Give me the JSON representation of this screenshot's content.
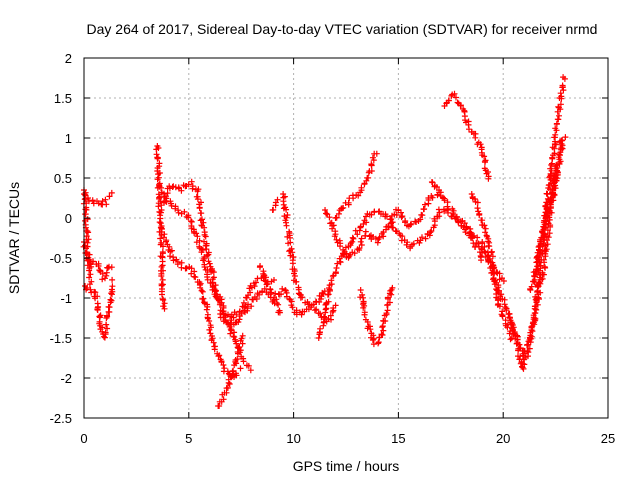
{
  "chart_data": {
    "type": "scatter",
    "title": "Day 264 of 2017, Sidereal Day-to-day VTEC variation (SDTVAR) for receiver nrmd",
    "xlabel": "GPS time / hours",
    "ylabel": "SDTVAR / TECUs",
    "xlim": [
      0,
      25
    ],
    "ylim": [
      -2.5,
      2
    ],
    "xticks": [
      "0",
      "5",
      "10",
      "15",
      "20",
      "25"
    ],
    "yticks": [
      "2",
      "1.5",
      "1",
      "0.5",
      "0",
      "-0.5",
      "-1",
      "-1.5",
      "-2",
      "-2.5"
    ],
    "grid": true,
    "marker": "+",
    "color": "#ff0000",
    "tracks": [
      {
        "x": [
          0.0,
          0.2,
          0.5,
          0.8,
          1.0,
          1.3
        ],
        "y": [
          0.3,
          0.25,
          0.2,
          0.15,
          0.2,
          0.3
        ]
      },
      {
        "x": [
          0.0,
          0.15,
          0.3,
          0.5,
          0.7,
          0.9,
          1.1,
          1.3
        ],
        "y": [
          -0.3,
          -0.45,
          -0.6,
          -0.55,
          -0.6,
          -0.75,
          -0.65,
          -0.6
        ]
      },
      {
        "x": [
          0.05,
          0.3,
          0.5,
          0.7,
          0.85,
          1.0,
          1.2,
          1.35
        ],
        "y": [
          -0.85,
          -0.9,
          -0.9,
          -1.15,
          -1.45,
          -1.5,
          -1.15,
          -0.8
        ]
      },
      {
        "x": [
          0.0,
          0.1,
          0.2,
          0.3
        ],
        "y": [
          0.35,
          0.05,
          -0.45,
          -0.8
        ]
      },
      {
        "x": [
          3.5,
          3.55,
          3.6,
          3.7,
          3.8
        ],
        "y": [
          0.9,
          0.6,
          0.2,
          -0.3,
          -1.15
        ]
      },
      {
        "x": [
          3.6,
          4.0,
          4.5,
          5.0,
          5.5,
          6.0,
          6.5,
          7.0,
          7.5,
          7.9
        ],
        "y": [
          0.4,
          0.2,
          0.1,
          0.0,
          -0.3,
          -0.8,
          -1.1,
          -1.4,
          -1.7,
          -1.9
        ]
      },
      {
        "x": [
          3.7,
          4.2,
          4.7,
          5.1,
          5.5,
          5.9,
          6.2,
          6.6,
          7.0,
          7.4
        ],
        "y": [
          -0.1,
          -0.5,
          -0.6,
          -0.65,
          -0.8,
          -1.2,
          -1.6,
          -1.85,
          -2.0,
          -1.9
        ]
      },
      {
        "x": [
          3.7,
          4.1,
          4.6,
          5.0,
          5.4,
          5.8,
          6.2,
          6.7,
          7.1,
          7.6,
          8.0,
          8.5,
          9.0
        ],
        "y": [
          0.1,
          0.4,
          0.35,
          0.45,
          0.35,
          -0.3,
          -0.8,
          -1.2,
          -1.25,
          -1.1,
          -0.85,
          -0.75,
          -0.8
        ]
      },
      {
        "x": [
          6.4,
          6.7,
          7.0,
          7.3,
          7.6
        ],
        "y": [
          -2.35,
          -2.2,
          -2.0,
          -1.75,
          -1.5
        ]
      },
      {
        "x": [
          6.5,
          7.0,
          7.5,
          8.0,
          8.5,
          9.0,
          9.4
        ],
        "y": [
          -1.2,
          -1.35,
          -1.25,
          -1.05,
          -0.9,
          -1.0,
          -1.2
        ]
      },
      {
        "x": [
          8.4,
          8.8,
          9.2,
          9.5
        ],
        "y": [
          -0.6,
          -0.85,
          -1.0,
          -0.9
        ]
      },
      {
        "x": [
          9.0,
          9.3
        ],
        "y": [
          0.1,
          0.2
        ]
      },
      {
        "x": [
          9.5,
          9.8,
          10.1,
          10.4,
          10.8,
          11.2,
          11.5
        ],
        "y": [
          0.3,
          -0.3,
          -0.8,
          -1.0,
          -1.1,
          -1.05,
          -0.9
        ]
      },
      {
        "x": [
          9.6,
          10.0,
          10.4,
          10.8,
          11.2,
          11.6,
          12.0
        ],
        "y": [
          -0.9,
          -1.15,
          -1.2,
          -1.1,
          -1.2,
          -1.3,
          -1.1
        ]
      },
      {
        "x": [
          11.2,
          11.5,
          11.8,
          12.1,
          12.4,
          12.8,
          13.2,
          13.6,
          14.0,
          14.5,
          15.0,
          15.5,
          16.0,
          16.5,
          17.0,
          17.5,
          18.0,
          18.5,
          19.0
        ],
        "y": [
          -1.5,
          -1.2,
          -0.8,
          -0.6,
          -0.45,
          -0.3,
          -0.1,
          0.05,
          0.1,
          0.0,
          -0.2,
          -0.35,
          -0.3,
          -0.2,
          0.1,
          0.05,
          -0.05,
          -0.25,
          -0.5
        ]
      },
      {
        "x": [
          11.5,
          12.0,
          12.5,
          13.0,
          13.5,
          14.0,
          14.5,
          15.0,
          15.5,
          16.0,
          16.5,
          17.0,
          17.5,
          18.0,
          18.5,
          19.0,
          19.5,
          20.0
        ],
        "y": [
          0.1,
          -0.2,
          -0.5,
          -0.4,
          -0.2,
          -0.3,
          -0.1,
          0.1,
          -0.1,
          0.0,
          0.25,
          0.3,
          0.1,
          -0.05,
          -0.2,
          -0.4,
          -0.6,
          -0.8
        ]
      },
      {
        "x": [
          12.0,
          12.4,
          12.8,
          13.2,
          13.6,
          13.9
        ],
        "y": [
          0.0,
          0.15,
          0.25,
          0.35,
          0.55,
          0.8
        ]
      },
      {
        "x": [
          13.2,
          13.5,
          13.8,
          14.1,
          14.4,
          14.7
        ],
        "y": [
          -0.9,
          -1.3,
          -1.55,
          -1.55,
          -1.2,
          -0.85
        ]
      },
      {
        "x": [
          16.6,
          16.8,
          17.0
        ],
        "y": [
          0.45,
          0.4,
          0.35
        ]
      },
      {
        "x": [
          17.2,
          17.6,
          17.9,
          18.2,
          18.6,
          19.0,
          19.3
        ],
        "y": [
          1.4,
          1.55,
          1.45,
          1.25,
          1.05,
          0.85,
          0.5
        ]
      },
      {
        "x": [
          18.5,
          18.8,
          19.1,
          19.4,
          19.6,
          19.8,
          20.1,
          20.4
        ],
        "y": [
          0.3,
          0.15,
          -0.15,
          -0.4,
          -0.8,
          -1.1,
          -1.3,
          -1.5
        ]
      },
      {
        "x": [
          19.0,
          19.4,
          19.8,
          20.1,
          20.4,
          20.7,
          21.0,
          21.3,
          21.6,
          22.0,
          22.4,
          22.8
        ],
        "y": [
          -0.3,
          -0.6,
          -0.9,
          -1.1,
          -1.3,
          -1.55,
          -1.7,
          -1.5,
          -1.1,
          -0.5,
          0.3,
          1.0
        ]
      },
      {
        "x": [
          20.3,
          20.6,
          20.9,
          21.2,
          21.5,
          21.8,
          22.1,
          22.4,
          22.7,
          22.9
        ],
        "y": [
          -1.2,
          -1.5,
          -1.9,
          -1.65,
          -1.2,
          -0.5,
          0.2,
          0.85,
          1.4,
          1.75
        ]
      },
      {
        "x": [
          21.5,
          21.8,
          22.1,
          22.4,
          22.7,
          22.9
        ],
        "y": [
          -0.8,
          -0.3,
          0.1,
          0.5,
          0.75,
          1.0
        ]
      },
      {
        "x": [
          21.3,
          21.7,
          22.0,
          22.3,
          22.6
        ],
        "y": [
          -0.9,
          -0.4,
          -0.1,
          0.2,
          0.6
        ]
      }
    ]
  }
}
